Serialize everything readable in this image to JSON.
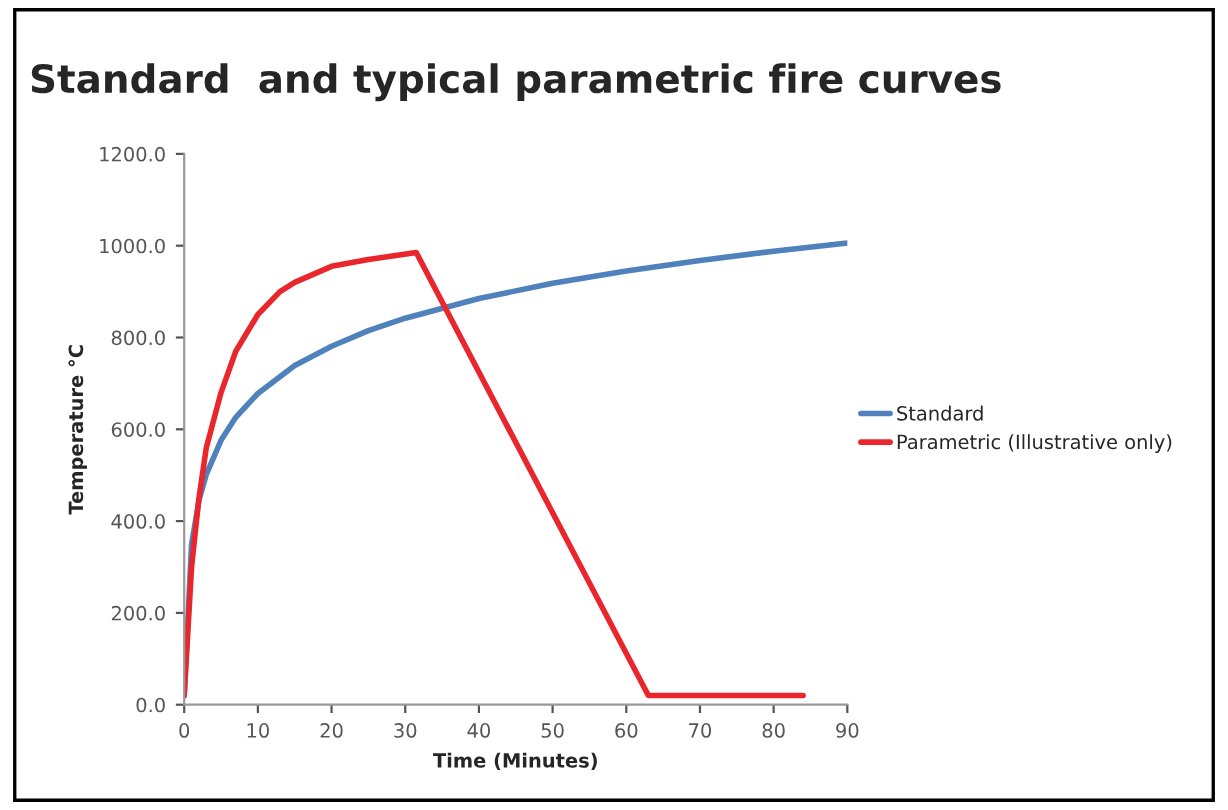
{
  "chart_data": {
    "type": "line",
    "title": "Standard  and typical parametric fire curves",
    "xlabel": "Time (Minutes)",
    "ylabel": "Temperature °C",
    "xlim": [
      0,
      90
    ],
    "xticks": [
      0,
      10,
      20,
      30,
      40,
      50,
      60,
      70,
      80,
      90
    ],
    "ylim": [
      0,
      1200
    ],
    "yticks": [
      {
        "value": 0,
        "label": "0.0"
      },
      {
        "value": 200,
        "label": "200.0"
      },
      {
        "value": 400,
        "label": "400.0"
      },
      {
        "value": 600,
        "label": "600.0"
      },
      {
        "value": 800,
        "label": "800.0"
      },
      {
        "value": 1000,
        "label": "1000.0"
      },
      {
        "value": 1200,
        "label": "1200.0"
      }
    ],
    "grid": false,
    "legend": "right",
    "marker": "none",
    "line_style": "solid",
    "series": [
      {
        "name": "Standard",
        "color": "#4f81bd",
        "x": [
          0,
          1,
          2,
          3,
          5,
          7,
          10,
          15,
          20,
          25,
          30,
          40,
          50,
          60,
          70,
          80,
          90
        ],
        "values": [
          20,
          349,
          445,
          502,
          576,
          626,
          678,
          739,
          781,
          815,
          842,
          885,
          918,
          945,
          968,
          988,
          1006
        ]
      },
      {
        "name": "Parametric (Illustrative only)",
        "color": "#e8262b",
        "x": [
          0,
          1,
          2,
          3,
          5,
          7,
          10,
          13,
          15,
          20,
          25,
          31.5,
          63,
          84
        ],
        "values": [
          20,
          300,
          450,
          560,
          680,
          770,
          850,
          900,
          920,
          955,
          970,
          985,
          20,
          20
        ]
      }
    ]
  }
}
